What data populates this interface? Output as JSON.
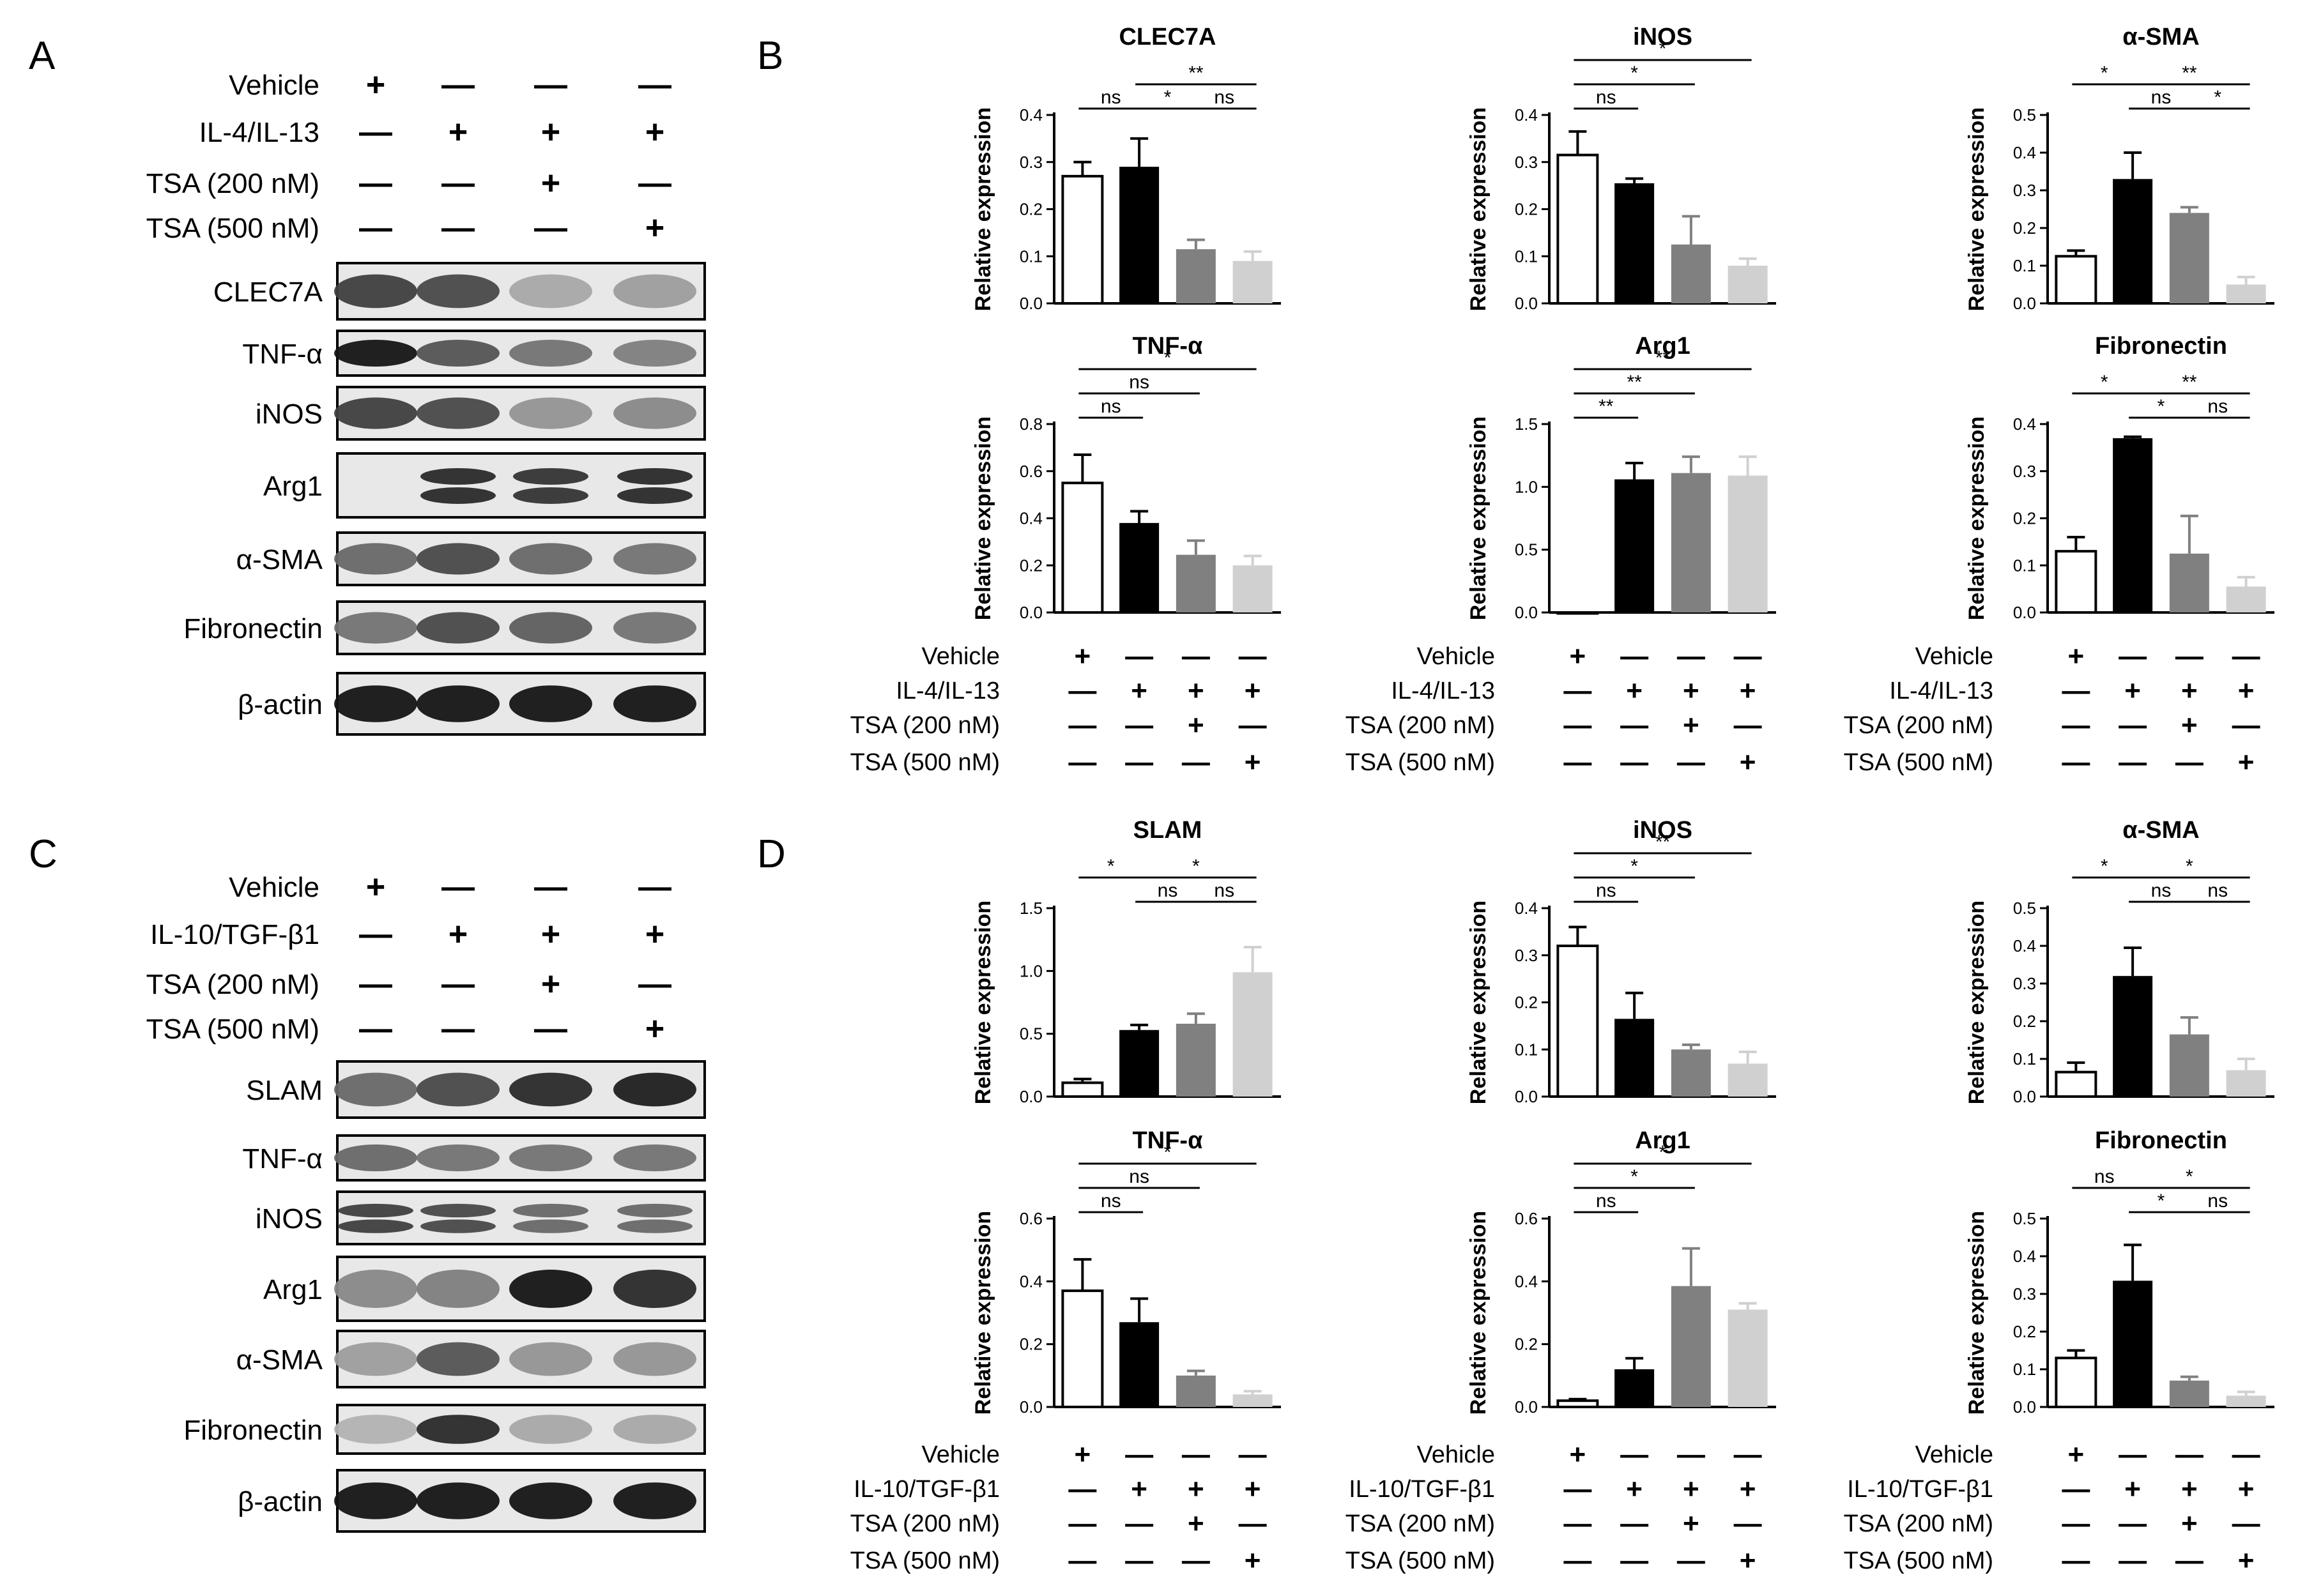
{
  "panels": {
    "A": {
      "letter": "A"
    },
    "B": {
      "letter": "B"
    },
    "C": {
      "letter": "C"
    },
    "D": {
      "letter": "D"
    }
  },
  "blots": {
    "A": {
      "conditions": [
        {
          "label": "Vehicle",
          "marks": [
            "+",
            "—",
            "—",
            "—"
          ]
        },
        {
          "label": "IL-4/IL-13",
          "marks": [
            "—",
            "+",
            "+",
            "+"
          ]
        },
        {
          "label": "TSA (200 nM)",
          "marks": [
            "—",
            "—",
            "+",
            "—"
          ]
        },
        {
          "label": "TSA (500 nM)",
          "marks": [
            "—",
            "—",
            "—",
            "+"
          ]
        }
      ],
      "rows": [
        {
          "label": "CLEC7A",
          "intensity": [
            0.75,
            0.7,
            0.25,
            0.3
          ],
          "double": false
        },
        {
          "label": "TNF-α",
          "intensity": [
            0.95,
            0.65,
            0.5,
            0.45
          ],
          "double": false
        },
        {
          "label": "iNOS",
          "intensity": [
            0.75,
            0.7,
            0.35,
            0.4
          ],
          "double": false
        },
        {
          "label": "Arg1",
          "intensity": [
            0.0,
            0.85,
            0.8,
            0.85
          ],
          "double": true
        },
        {
          "label": "α-SMA",
          "intensity": [
            0.55,
            0.7,
            0.55,
            0.5
          ],
          "double": false
        },
        {
          "label": "Fibronectin",
          "intensity": [
            0.5,
            0.7,
            0.6,
            0.5
          ],
          "double": false
        },
        {
          "label": "β-actin",
          "intensity": [
            0.95,
            0.95,
            0.95,
            0.95
          ],
          "double": false
        }
      ]
    },
    "C": {
      "conditions": [
        {
          "label": "Vehicle",
          "marks": [
            "+",
            "—",
            "—",
            "—"
          ]
        },
        {
          "label": "IL-10/TGF-β1",
          "marks": [
            "—",
            "+",
            "+",
            "+"
          ]
        },
        {
          "label": "TSA (200 nM)",
          "marks": [
            "—",
            "—",
            "+",
            "—"
          ]
        },
        {
          "label": "TSA (500 nM)",
          "marks": [
            "—",
            "—",
            "—",
            "+"
          ]
        }
      ],
      "rows": [
        {
          "label": "SLAM",
          "intensity": [
            0.55,
            0.7,
            0.85,
            0.9
          ],
          "double": false
        },
        {
          "label": "TNF-α",
          "intensity": [
            0.55,
            0.5,
            0.5,
            0.5
          ],
          "double": false
        },
        {
          "label": "iNOS",
          "intensity": [
            0.75,
            0.7,
            0.55,
            0.55
          ],
          "double": true
        },
        {
          "label": "Arg1",
          "intensity": [
            0.4,
            0.45,
            0.95,
            0.85
          ],
          "double": false
        },
        {
          "label": "α-SMA",
          "intensity": [
            0.3,
            0.65,
            0.35,
            0.35
          ],
          "double": false
        },
        {
          "label": "Fibronectin",
          "intensity": [
            0.2,
            0.85,
            0.25,
            0.25
          ],
          "double": false
        },
        {
          "label": "β-actin",
          "intensity": [
            0.95,
            0.95,
            0.95,
            0.95
          ],
          "double": false
        }
      ]
    }
  },
  "grid_conditions": {
    "B": [
      {
        "label": "Vehicle",
        "marks": [
          "+",
          "—",
          "—",
          "—"
        ]
      },
      {
        "label": "IL-4/IL-13",
        "marks": [
          "—",
          "+",
          "+",
          "+"
        ]
      },
      {
        "label": "TSA (200 nM)",
        "marks": [
          "—",
          "—",
          "+",
          "—"
        ]
      },
      {
        "label": "TSA (500 nM)",
        "marks": [
          "—",
          "—",
          "—",
          "+"
        ]
      }
    ],
    "D": [
      {
        "label": "Vehicle",
        "marks": [
          "+",
          "—",
          "—",
          "—"
        ]
      },
      {
        "label": "IL-10/TGF-β1",
        "marks": [
          "—",
          "+",
          "+",
          "+"
        ]
      },
      {
        "label": "TSA (200 nM)",
        "marks": [
          "—",
          "—",
          "+",
          "—"
        ]
      },
      {
        "label": "TSA (500 nM)",
        "marks": [
          "—",
          "—",
          "—",
          "+"
        ]
      }
    ]
  },
  "bar_colors": [
    "#ffffff",
    "#000000",
    "#808080",
    "#d0d0d0"
  ],
  "chart_data": [
    {
      "panel": "B",
      "type": "bar",
      "title": "CLEC7A",
      "ylabel": "Relative expression",
      "ylim": [
        0,
        0.4
      ],
      "yticks": [
        "0.0",
        "0.1",
        "0.2",
        "0.3",
        "0.4"
      ],
      "values": [
        0.27,
        0.29,
        0.115,
        0.09
      ],
      "errors": [
        0.03,
        0.06,
        0.02,
        0.02
      ],
      "sig": [
        {
          "from": 0,
          "to": 1,
          "text": "ns",
          "level": 0
        },
        {
          "from": 1,
          "to": 2,
          "text": "*",
          "level": 0
        },
        {
          "from": 2,
          "to": 3,
          "text": "ns",
          "level": 0
        },
        {
          "from": 1,
          "to": 3,
          "text": "**",
          "level": 1
        }
      ]
    },
    {
      "panel": "B",
      "type": "bar",
      "title": "iNOS",
      "ylabel": "Relative expression",
      "ylim": [
        0,
        0.4
      ],
      "yticks": [
        "0.0",
        "0.1",
        "0.2",
        "0.3",
        "0.4"
      ],
      "values": [
        0.315,
        0.255,
        0.125,
        0.08
      ],
      "errors": [
        0.05,
        0.01,
        0.06,
        0.015
      ],
      "sig": [
        {
          "from": 0,
          "to": 1,
          "text": "ns",
          "level": 0
        },
        {
          "from": 0,
          "to": 2,
          "text": "*",
          "level": 1
        },
        {
          "from": 0,
          "to": 3,
          "text": "*",
          "level": 2
        }
      ]
    },
    {
      "panel": "B",
      "type": "bar",
      "title": "α-SMA",
      "ylabel": "Relative expression",
      "ylim": [
        0,
        0.5
      ],
      "yticks": [
        "0.0",
        "0.1",
        "0.2",
        "0.3",
        "0.4",
        "0.5"
      ],
      "values": [
        0.125,
        0.33,
        0.24,
        0.05
      ],
      "errors": [
        0.015,
        0.07,
        0.015,
        0.02
      ],
      "sig": [
        {
          "from": 0,
          "to": 1,
          "text": "*",
          "level": 1
        },
        {
          "from": 1,
          "to": 2,
          "text": "ns",
          "level": 0
        },
        {
          "from": 2,
          "to": 3,
          "text": "*",
          "level": 0
        },
        {
          "from": 1,
          "to": 3,
          "text": "**",
          "level": 1
        }
      ]
    },
    {
      "panel": "B",
      "type": "bar",
      "title": "TNF-α",
      "ylabel": "Relative expression",
      "ylim": [
        0,
        0.8
      ],
      "yticks": [
        "0.0",
        "0.2",
        "0.4",
        "0.6",
        "0.8"
      ],
      "values": [
        0.55,
        0.38,
        0.245,
        0.2
      ],
      "errors": [
        0.12,
        0.05,
        0.06,
        0.04
      ],
      "sig": [
        {
          "from": 0,
          "to": 1,
          "text": "ns",
          "level": 0
        },
        {
          "from": 0,
          "to": 2,
          "text": "ns",
          "level": 1
        },
        {
          "from": 0,
          "to": 3,
          "text": "*",
          "level": 2
        }
      ]
    },
    {
      "panel": "B",
      "type": "bar",
      "title": "Arg1",
      "ylabel": "Relative expression",
      "ylim": [
        0,
        1.5
      ],
      "yticks": [
        "0.0",
        "0.5",
        "1.0",
        "1.5"
      ],
      "values": [
        0.0,
        1.06,
        1.11,
        1.09
      ],
      "errors": [
        0.0,
        0.13,
        0.13,
        0.15
      ],
      "sig": [
        {
          "from": 0,
          "to": 1,
          "text": "**",
          "level": 0
        },
        {
          "from": 0,
          "to": 2,
          "text": "**",
          "level": 1
        },
        {
          "from": 0,
          "to": 3,
          "text": "**",
          "level": 2
        }
      ]
    },
    {
      "panel": "B",
      "type": "bar",
      "title": "Fibronectin",
      "ylabel": "Relative expression",
      "ylim": [
        0,
        0.4
      ],
      "yticks": [
        "0.0",
        "0.1",
        "0.2",
        "0.3",
        "0.4"
      ],
      "values": [
        0.13,
        0.37,
        0.125,
        0.055
      ],
      "errors": [
        0.03,
        0.003,
        0.08,
        0.02
      ],
      "sig": [
        {
          "from": 0,
          "to": 1,
          "text": "*",
          "level": 1
        },
        {
          "from": 1,
          "to": 2,
          "text": "*",
          "level": 0
        },
        {
          "from": 2,
          "to": 3,
          "text": "ns",
          "level": 0
        },
        {
          "from": 1,
          "to": 3,
          "text": "**",
          "level": 1
        }
      ]
    },
    {
      "panel": "D",
      "type": "bar",
      "title": "SLAM",
      "ylabel": "Relative expression",
      "ylim": [
        0,
        1.5
      ],
      "yticks": [
        "0.0",
        "0.5",
        "1.0",
        "1.5"
      ],
      "values": [
        0.11,
        0.53,
        0.58,
        0.99
      ],
      "errors": [
        0.03,
        0.04,
        0.08,
        0.2
      ],
      "sig": [
        {
          "from": 0,
          "to": 1,
          "text": "*",
          "level": 1
        },
        {
          "from": 1,
          "to": 2,
          "text": "ns",
          "level": 0
        },
        {
          "from": 2,
          "to": 3,
          "text": "ns",
          "level": 0
        },
        {
          "from": 1,
          "to": 3,
          "text": "*",
          "level": 1
        }
      ]
    },
    {
      "panel": "D",
      "type": "bar",
      "title": "iNOS",
      "ylabel": "Relative expression",
      "ylim": [
        0,
        0.4
      ],
      "yticks": [
        "0.0",
        "0.1",
        "0.2",
        "0.3",
        "0.4"
      ],
      "values": [
        0.32,
        0.165,
        0.1,
        0.07
      ],
      "errors": [
        0.04,
        0.055,
        0.01,
        0.025
      ],
      "sig": [
        {
          "from": 0,
          "to": 1,
          "text": "ns",
          "level": 0
        },
        {
          "from": 0,
          "to": 2,
          "text": "*",
          "level": 1
        },
        {
          "from": 0,
          "to": 3,
          "text": "**",
          "level": 2
        }
      ]
    },
    {
      "panel": "D",
      "type": "bar",
      "title": "α-SMA",
      "ylabel": "Relative expression",
      "ylim": [
        0,
        0.5
      ],
      "yticks": [
        "0.0",
        "0.1",
        "0.2",
        "0.3",
        "0.4",
        "0.5"
      ],
      "values": [
        0.065,
        0.32,
        0.165,
        0.07
      ],
      "errors": [
        0.025,
        0.075,
        0.045,
        0.03
      ],
      "sig": [
        {
          "from": 0,
          "to": 1,
          "text": "*",
          "level": 1
        },
        {
          "from": 1,
          "to": 2,
          "text": "ns",
          "level": 0
        },
        {
          "from": 2,
          "to": 3,
          "text": "ns",
          "level": 0
        },
        {
          "from": 1,
          "to": 3,
          "text": "*",
          "level": 1
        }
      ]
    },
    {
      "panel": "D",
      "type": "bar",
      "title": "TNF-α",
      "ylabel": "Relative expression",
      "ylim": [
        0,
        0.6
      ],
      "yticks": [
        "0.0",
        "0.2",
        "0.4",
        "0.6"
      ],
      "values": [
        0.37,
        0.27,
        0.1,
        0.04
      ],
      "errors": [
        0.1,
        0.075,
        0.015,
        0.01
      ],
      "sig": [
        {
          "from": 0,
          "to": 1,
          "text": "ns",
          "level": 0
        },
        {
          "from": 0,
          "to": 2,
          "text": "ns",
          "level": 1
        },
        {
          "from": 0,
          "to": 3,
          "text": "*",
          "level": 2
        }
      ]
    },
    {
      "panel": "D",
      "type": "bar",
      "title": "Arg1",
      "ylabel": "Relative expression",
      "ylim": [
        0,
        0.6
      ],
      "yticks": [
        "0.0",
        "0.2",
        "0.4",
        "0.6"
      ],
      "values": [
        0.02,
        0.12,
        0.385,
        0.31
      ],
      "errors": [
        0.005,
        0.035,
        0.12,
        0.02
      ],
      "sig": [
        {
          "from": 0,
          "to": 1,
          "text": "ns",
          "level": 0
        },
        {
          "from": 0,
          "to": 2,
          "text": "*",
          "level": 1
        },
        {
          "from": 0,
          "to": 3,
          "text": "*",
          "level": 2
        }
      ]
    },
    {
      "panel": "D",
      "type": "bar",
      "title": "Fibronectin",
      "ylabel": "Relative expression",
      "ylim": [
        0,
        0.5
      ],
      "yticks": [
        "0.0",
        "0.1",
        "0.2",
        "0.3",
        "0.4",
        "0.5"
      ],
      "values": [
        0.13,
        0.335,
        0.07,
        0.03
      ],
      "errors": [
        0.02,
        0.095,
        0.01,
        0.01
      ],
      "sig": [
        {
          "from": 0,
          "to": 1,
          "text": "ns",
          "level": 1
        },
        {
          "from": 1,
          "to": 2,
          "text": "*",
          "level": 0
        },
        {
          "from": 2,
          "to": 3,
          "text": "ns",
          "level": 0
        },
        {
          "from": 1,
          "to": 3,
          "text": "*",
          "level": 1
        }
      ]
    }
  ]
}
